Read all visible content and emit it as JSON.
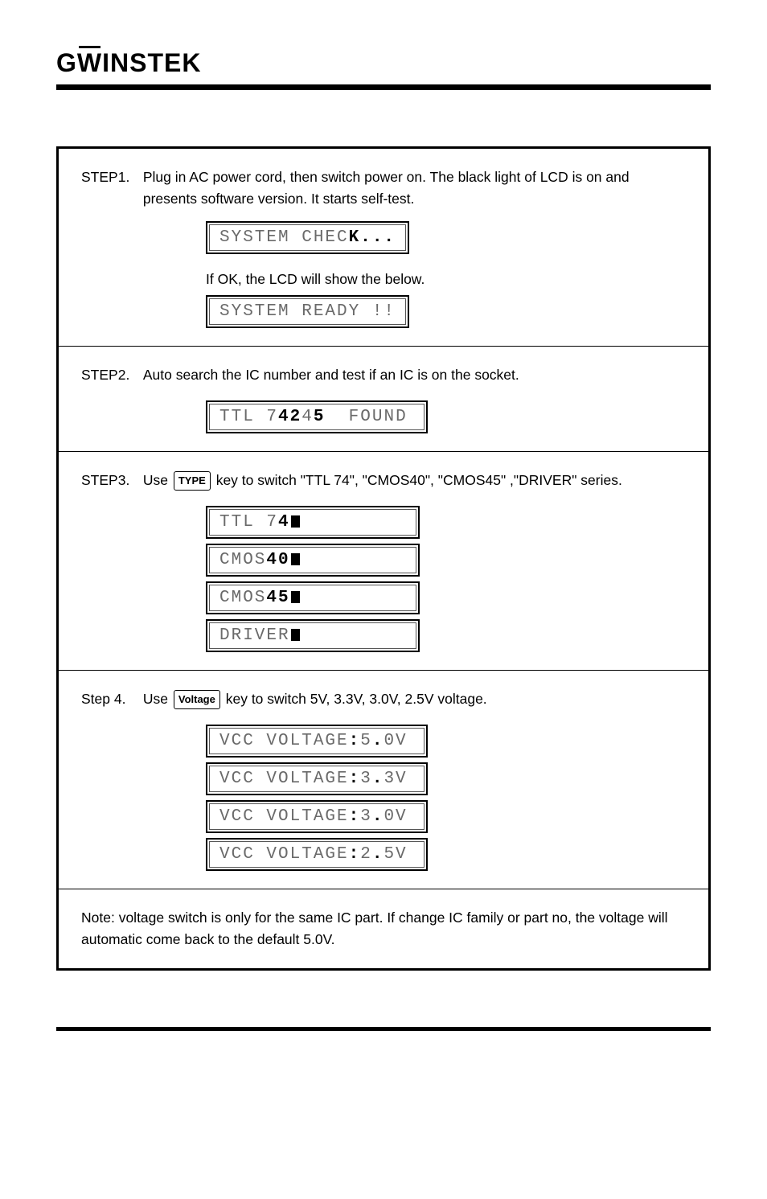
{
  "logo": "GWINSTEK",
  "steps": {
    "step1": {
      "label": "STEP1.",
      "body": "Plug in AC power cord, then switch power on. The black light of LCD is on and presents software version.  It starts self-test.",
      "lcd1": "SYSTEM CHECK...",
      "midText": "If OK, the LCD will show the below.",
      "lcd2": "SYSTEM READY !!"
    },
    "step2": {
      "label": "STEP2.",
      "body": "Auto search the IC number and test if an IC is on the socket.",
      "lcd": "TTL 74245  FOUND"
    },
    "step3": {
      "label": "STEP3.",
      "bodyPrefix": "Use ",
      "key": "TYPE",
      "bodySuffix": " key to switch \"TTL 74\", \"CMOS40\", \"CMOS45\" ,\"DRIVER\" series.",
      "lcds": [
        "TTL 74",
        "CMOS40",
        "CMOS45",
        "DRIVER"
      ]
    },
    "step4": {
      "label": "Step 4.",
      "bodyPrefix": "Use ",
      "key": "Voltage",
      "bodySuffix": " key to switch 5V, 3.3V, 3.0V, 2.5V  voltage.",
      "lcds": [
        "VCC VOLTAGE:5.0V",
        "VCC VOLTAGE:3.3V",
        "VCC VOLTAGE:3.0V",
        "VCC VOLTAGE:2.5V"
      ]
    },
    "note": {
      "prefix": "Note: ",
      "text": "voltage switch is only for the same IC part. If change IC family or part no, the voltage will automatic come back to the default 5.0V."
    }
  },
  "style": {
    "lcdTextColor": "#6a6a6a",
    "lcdBoldColor": "#000000",
    "ruleColor": "#000000",
    "fontSizeBody": 17.5,
    "fontSizeLcd": 21,
    "lcdFontFamily": "Courier New"
  }
}
